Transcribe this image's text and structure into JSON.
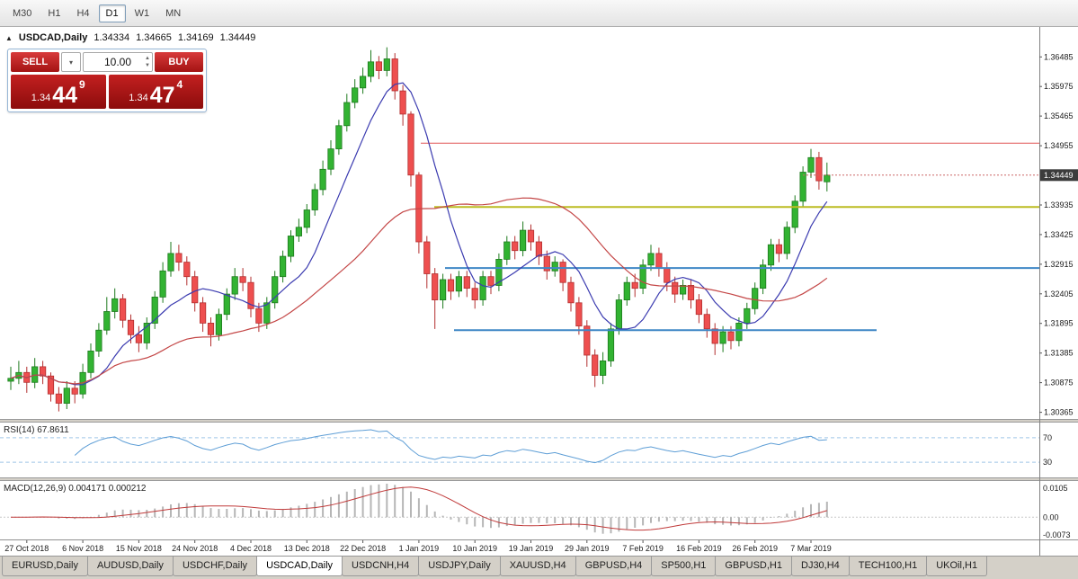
{
  "toolbar": {
    "timeframes": [
      {
        "label": "M30",
        "active": false
      },
      {
        "label": "H1",
        "active": false
      },
      {
        "label": "H4",
        "active": false
      },
      {
        "label": "D1",
        "active": true
      },
      {
        "label": "W1",
        "active": false
      },
      {
        "label": "MN",
        "active": false
      }
    ]
  },
  "header": {
    "expand_icon": "▲",
    "symbol_text": "USDCAD,Daily",
    "open": "1.34334",
    "high": "1.34665",
    "low": "1.34169",
    "close": "1.34449"
  },
  "trade_panel": {
    "sell_label": "SELL",
    "buy_label": "BUY",
    "volume": "10.00",
    "dropdown_icon": "▾",
    "up_icon": "▲",
    "down_icon": "▼",
    "bid": {
      "prefix": "1.34",
      "big": "44",
      "sup": "9"
    },
    "ask": {
      "prefix": "1.34",
      "big": "47",
      "sup": "4"
    }
  },
  "chart_data": {
    "type": "candlestick",
    "symbol": "USDCAD",
    "timeframe": "Daily",
    "ylim": [
      1.3025,
      1.37
    ],
    "y_ticks": [
      "1.36485",
      "1.35975",
      "1.35465",
      "1.34955",
      "1.33935",
      "1.33425",
      "1.32915",
      "1.32405",
      "1.31895",
      "1.31385",
      "1.30875",
      "1.30365"
    ],
    "current_price": 1.34449,
    "current_price_label": "1.34449",
    "candles": [
      [
        1.309,
        1.3115,
        1.3075,
        1.3095
      ],
      [
        1.3095,
        1.3125,
        1.3085,
        1.3105
      ],
      [
        1.3105,
        1.3115,
        1.307,
        1.3088
      ],
      [
        1.3088,
        1.313,
        1.3078,
        1.3115
      ],
      [
        1.3115,
        1.3125,
        1.3085,
        1.3099
      ],
      [
        1.3099,
        1.3105,
        1.3055,
        1.3068
      ],
      [
        1.3068,
        1.308,
        1.3038,
        1.3052
      ],
      [
        1.3052,
        1.309,
        1.3042,
        1.3078
      ],
      [
        1.3078,
        1.309,
        1.3052,
        1.3068
      ],
      [
        1.3068,
        1.312,
        1.306,
        1.3105
      ],
      [
        1.3105,
        1.3155,
        1.3095,
        1.3142
      ],
      [
        1.3142,
        1.319,
        1.3132,
        1.3178
      ],
      [
        1.3178,
        1.3235,
        1.317,
        1.321
      ],
      [
        1.321,
        1.325,
        1.3198,
        1.3232
      ],
      [
        1.3232,
        1.324,
        1.3182,
        1.3195
      ],
      [
        1.3195,
        1.3205,
        1.3155,
        1.317
      ],
      [
        1.317,
        1.3185,
        1.314,
        1.3156
      ],
      [
        1.3156,
        1.32,
        1.3145,
        1.319
      ],
      [
        1.319,
        1.3245,
        1.318,
        1.3235
      ],
      [
        1.3235,
        1.3295,
        1.3225,
        1.328
      ],
      [
        1.328,
        1.333,
        1.327,
        1.331
      ],
      [
        1.331,
        1.3325,
        1.328,
        1.3295
      ],
      [
        1.3295,
        1.3305,
        1.3255,
        1.327
      ],
      [
        1.327,
        1.328,
        1.321,
        1.3225
      ],
      [
        1.3225,
        1.3235,
        1.3175,
        1.319
      ],
      [
        1.319,
        1.32,
        1.315,
        1.317
      ],
      [
        1.317,
        1.3215,
        1.316,
        1.3205
      ],
      [
        1.3205,
        1.325,
        1.3195,
        1.324
      ],
      [
        1.324,
        1.3285,
        1.323,
        1.327
      ],
      [
        1.327,
        1.3285,
        1.3245,
        1.326
      ],
      [
        1.326,
        1.327,
        1.32,
        1.3215
      ],
      [
        1.3215,
        1.3225,
        1.3175,
        1.319
      ],
      [
        1.319,
        1.3235,
        1.318,
        1.3225
      ],
      [
        1.3225,
        1.328,
        1.3215,
        1.327
      ],
      [
        1.327,
        1.3315,
        1.326,
        1.3305
      ],
      [
        1.3305,
        1.335,
        1.3295,
        1.334
      ],
      [
        1.334,
        1.337,
        1.333,
        1.3355
      ],
      [
        1.3355,
        1.3395,
        1.3345,
        1.3385
      ],
      [
        1.3385,
        1.343,
        1.3375,
        1.342
      ],
      [
        1.342,
        1.347,
        1.341,
        1.3455
      ],
      [
        1.3455,
        1.3505,
        1.3445,
        1.349
      ],
      [
        1.349,
        1.354,
        1.348,
        1.353
      ],
      [
        1.353,
        1.3585,
        1.352,
        1.357
      ],
      [
        1.357,
        1.361,
        1.356,
        1.3595
      ],
      [
        1.3595,
        1.363,
        1.3585,
        1.3615
      ],
      [
        1.3615,
        1.366,
        1.3605,
        1.364
      ],
      [
        1.364,
        1.365,
        1.361,
        1.3625
      ],
      [
        1.3625,
        1.3665,
        1.3615,
        1.3645
      ],
      [
        1.3645,
        1.3655,
        1.3575,
        1.359
      ],
      [
        1.359,
        1.36,
        1.353,
        1.355
      ],
      [
        1.355,
        1.3555,
        1.3425,
        1.3445
      ],
      [
        1.3445,
        1.345,
        1.331,
        1.333
      ],
      [
        1.333,
        1.334,
        1.325,
        1.3275
      ],
      [
        1.3275,
        1.3285,
        1.318,
        1.323
      ],
      [
        1.323,
        1.3275,
        1.3215,
        1.3265
      ],
      [
        1.3265,
        1.3275,
        1.323,
        1.3245
      ],
      [
        1.3245,
        1.328,
        1.3235,
        1.327
      ],
      [
        1.327,
        1.328,
        1.3235,
        1.325
      ],
      [
        1.325,
        1.326,
        1.3215,
        1.323
      ],
      [
        1.323,
        1.328,
        1.322,
        1.327
      ],
      [
        1.327,
        1.328,
        1.324,
        1.3255
      ],
      [
        1.3255,
        1.331,
        1.3245,
        1.33
      ],
      [
        1.33,
        1.334,
        1.329,
        1.333
      ],
      [
        1.333,
        1.334,
        1.33,
        1.3315
      ],
      [
        1.3315,
        1.3365,
        1.3305,
        1.335
      ],
      [
        1.335,
        1.336,
        1.3315,
        1.333
      ],
      [
        1.333,
        1.334,
        1.329,
        1.3305
      ],
      [
        1.3305,
        1.3315,
        1.3265,
        1.328
      ],
      [
        1.328,
        1.3305,
        1.327,
        1.3295
      ],
      [
        1.3295,
        1.33,
        1.3245,
        1.326
      ],
      [
        1.326,
        1.327,
        1.321,
        1.3225
      ],
      [
        1.3225,
        1.3235,
        1.317,
        1.3185
      ],
      [
        1.3185,
        1.3195,
        1.3115,
        1.3135
      ],
      [
        1.3135,
        1.3145,
        1.308,
        1.31
      ],
      [
        1.31,
        1.314,
        1.3085,
        1.3125
      ],
      [
        1.3125,
        1.319,
        1.3115,
        1.318
      ],
      [
        1.318,
        1.324,
        1.317,
        1.323
      ],
      [
        1.323,
        1.327,
        1.322,
        1.326
      ],
      [
        1.326,
        1.3275,
        1.3235,
        1.325
      ],
      [
        1.325,
        1.33,
        1.324,
        1.329
      ],
      [
        1.329,
        1.3325,
        1.328,
        1.331
      ],
      [
        1.331,
        1.332,
        1.327,
        1.3285
      ],
      [
        1.3285,
        1.3295,
        1.3245,
        1.326
      ],
      [
        1.326,
        1.327,
        1.3225,
        1.324
      ],
      [
        1.324,
        1.3265,
        1.323,
        1.3255
      ],
      [
        1.3255,
        1.3265,
        1.3215,
        1.323
      ],
      [
        1.323,
        1.324,
        1.319,
        1.3205
      ],
      [
        1.3205,
        1.3215,
        1.3165,
        1.318
      ],
      [
        1.318,
        1.319,
        1.3135,
        1.3155
      ],
      [
        1.3155,
        1.3185,
        1.314,
        1.3175
      ],
      [
        1.3175,
        1.3185,
        1.3145,
        1.316
      ],
      [
        1.316,
        1.32,
        1.315,
        1.319
      ],
      [
        1.319,
        1.3225,
        1.318,
        1.3215
      ],
      [
        1.3215,
        1.326,
        1.3205,
        1.325
      ],
      [
        1.325,
        1.33,
        1.324,
        1.329
      ],
      [
        1.329,
        1.3335,
        1.328,
        1.3325
      ],
      [
        1.3325,
        1.3335,
        1.3295,
        1.331
      ],
      [
        1.331,
        1.3365,
        1.33,
        1.3355
      ],
      [
        1.3355,
        1.341,
        1.3345,
        1.34
      ],
      [
        1.34,
        1.346,
        1.339,
        1.345
      ],
      [
        1.345,
        1.349,
        1.344,
        1.3475
      ],
      [
        1.3475,
        1.3485,
        1.342,
        1.3435
      ],
      [
        1.34334,
        1.34665,
        1.34169,
        1.34449
      ]
    ],
    "date_labels": [
      {
        "i": 2,
        "t": "27 Oct 2018"
      },
      {
        "i": 9,
        "t": "6 Nov 2018"
      },
      {
        "i": 16,
        "t": "15 Nov 2018"
      },
      {
        "i": 23,
        "t": "24 Nov 2018"
      },
      {
        "i": 30,
        "t": "4 Dec 2018"
      },
      {
        "i": 37,
        "t": "13 Dec 2018"
      },
      {
        "i": 44,
        "t": "22 Dec 2018"
      },
      {
        "i": 51,
        "t": "1 Jan 2019"
      },
      {
        "i": 58,
        "t": "10 Jan 2019"
      },
      {
        "i": 65,
        "t": "19 Jan 2019"
      },
      {
        "i": 72,
        "t": "29 Jan 2019"
      },
      {
        "i": 79,
        "t": "7 Feb 2019"
      },
      {
        "i": 86,
        "t": "16 Feb 2019"
      },
      {
        "i": 93,
        "t": "26 Feb 2019"
      },
      {
        "i": 100,
        "t": "7 Mar 2019"
      }
    ],
    "moving_averages": [
      {
        "type": "sma",
        "period": 8,
        "color": "#3b3bb0",
        "name": "ma-fast-blue"
      },
      {
        "type": "sma",
        "period": 30,
        "color": "#c44747",
        "name": "ma-slow-red"
      }
    ],
    "hlines": [
      {
        "name": "resistance-line-red",
        "price": 1.35,
        "color": "#e05555",
        "width": 1,
        "x0": 0.405,
        "x1": 1.0
      },
      {
        "name": "resistance-line-yellow",
        "price": 1.339,
        "color": "#bcbc22",
        "width": 2,
        "x0": 0.418,
        "x1": 1.0
      },
      {
        "name": "support-line-blue-upper",
        "price": 1.3285,
        "color": "#3f87c6",
        "width": 2,
        "x0": 0.428,
        "x1": 1.0
      },
      {
        "name": "support-line-blue-lower",
        "price": 1.3178,
        "color": "#3f87c6",
        "width": 2,
        "x0": 0.437,
        "x1": 0.843
      }
    ],
    "colors": {
      "up": "#32b332",
      "up_border": "#1d7a1d",
      "down": "#ee4f4f",
      "down_border": "#b22f2f",
      "badge_bg": "#3c3c3c",
      "badge_text": "#ffffff",
      "axis_text": "#1a1a1a",
      "bid_line": "#cc6666"
    }
  },
  "rsi_panel": {
    "header": "RSI(14) 67.8611",
    "chart_data": {
      "type": "line",
      "indicator": "RSI",
      "period": 14,
      "current": "67.8611",
      "levels": [
        {
          "value": 70,
          "label": "70"
        },
        {
          "value": 30,
          "label": "30"
        }
      ],
      "ylim": [
        5,
        95
      ],
      "color": "#5e9ed6",
      "level_color": "#9fc5e8"
    }
  },
  "macd_panel": {
    "header": "MACD(12,26,9) 0.004171 0.000212",
    "chart_data": {
      "type": "histogram+line",
      "indicator": "MACD",
      "fast": 12,
      "slow": 26,
      "signal": 9,
      "current_macd": "0.004171",
      "current_signal": "0.000212",
      "axis_labels": {
        "top": "0.0105",
        "zero": "0.00",
        "bottom": "-0.0073"
      },
      "histogram_color": "#b6b6b6",
      "signal_color": "#c03a3a"
    }
  },
  "tabs": [
    {
      "label": "EURUSD,Daily",
      "active": false
    },
    {
      "label": "AUDUSD,Daily",
      "active": false
    },
    {
      "label": "USDCHF,Daily",
      "active": false
    },
    {
      "label": "USDCAD,Daily",
      "active": true
    },
    {
      "label": "USDCNH,H4",
      "active": false
    },
    {
      "label": "USDJPY,Daily",
      "active": false
    },
    {
      "label": "XAUUSD,H4",
      "active": false
    },
    {
      "label": "GBPUSD,H4",
      "active": false
    },
    {
      "label": "SP500,H1",
      "active": false
    },
    {
      "label": "GBPUSD,H1",
      "active": false
    },
    {
      "label": "DJ30,H4",
      "active": false
    },
    {
      "label": "TECH100,H1",
      "active": false
    },
    {
      "label": "UKOil,H1",
      "active": false
    }
  ]
}
